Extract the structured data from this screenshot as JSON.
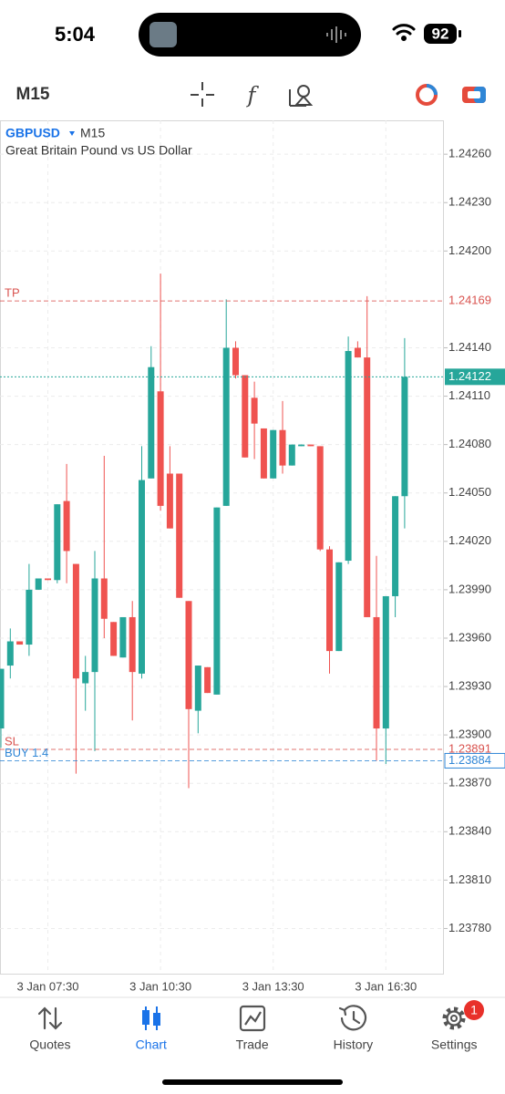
{
  "status_bar": {
    "time": "5:04",
    "battery": "92"
  },
  "toolbar": {
    "timeframe": "M15"
  },
  "chart_data": {
    "type": "candlestick",
    "symbol": "GBPUSD",
    "timeframe": "M15",
    "description": "Great Britain Pound vs US Dollar",
    "categories": [
      null,
      null,
      null,
      null,
      null,
      "3 Jan 07:30",
      null,
      null,
      null,
      null,
      null,
      null,
      null,
      null,
      null,
      null,
      null,
      "3 Jan 10:30",
      null,
      null,
      null,
      null,
      null,
      null,
      null,
      null,
      null,
      null,
      null,
      "3 Jan 13:30",
      null,
      null,
      null,
      null,
      null,
      null,
      null,
      null,
      null,
      null,
      null,
      "3 Jan 16:30",
      null,
      null
    ],
    "open": [
      1.23904,
      1.23943,
      1.23958,
      1.23956,
      1.2399,
      1.23997,
      1.23996,
      1.24045,
      1.24006,
      1.23932,
      1.23939,
      1.23997,
      1.2397,
      1.23948,
      1.23973,
      1.23938,
      1.24059,
      1.24113,
      1.24062,
      1.24062,
      1.23983,
      1.23915,
      1.23942,
      1.23925,
      1.24042,
      1.2414,
      1.24123,
      1.24109,
      1.2409,
      1.24059,
      1.24089,
      1.24067,
      1.24079,
      1.2408,
      1.24079,
      1.24015,
      1.23952,
      1.24008,
      1.2414,
      1.24134,
      1.23973,
      1.23904,
      1.23986,
      1.24048
    ],
    "high": [
      1.23941,
      1.23966,
      1.23958,
      1.24006,
      1.23997,
      1.23997,
      1.24043,
      1.24068,
      1.24006,
      1.23949,
      1.24014,
      1.24073,
      1.2397,
      1.23973,
      1.23983,
      1.24079,
      1.24141,
      1.24186,
      1.24079,
      1.24062,
      1.23983,
      1.23943,
      1.23942,
      1.24041,
      1.2417,
      1.24144,
      1.24123,
      1.24119,
      1.2409,
      1.24089,
      1.24107,
      1.2408,
      1.2408,
      1.2408,
      1.24079,
      1.24017,
      1.24007,
      1.24147,
      1.24144,
      1.24172,
      1.24011,
      1.23986,
      1.24048,
      1.24146
    ],
    "low": [
      1.23892,
      1.23935,
      1.23956,
      1.23949,
      1.2399,
      1.23996,
      1.23994,
      1.23994,
      1.23876,
      1.23915,
      1.2389,
      1.2396,
      1.23949,
      1.23948,
      1.23909,
      1.23935,
      1.24059,
      1.24039,
      1.24028,
      1.23985,
      1.23867,
      1.23901,
      1.23926,
      1.23925,
      1.24042,
      1.24121,
      1.24072,
      1.24071,
      1.24059,
      1.24059,
      1.24062,
      1.24067,
      1.24079,
      1.24079,
      1.24014,
      1.23938,
      1.23952,
      1.24006,
      1.24134,
      1.23973,
      1.23884,
      1.23882,
      1.23973,
      1.24028
    ],
    "close": [
      1.23941,
      1.23958,
      1.23956,
      1.2399,
      1.23997,
      1.23996,
      1.24043,
      1.24014,
      1.23935,
      1.23939,
      1.23997,
      1.23972,
      1.23949,
      1.23973,
      1.23939,
      1.24058,
      1.24128,
      1.24042,
      1.24028,
      1.23985,
      1.23916,
      1.23943,
      1.23926,
      1.24041,
      1.2414,
      1.24123,
      1.24072,
      1.24093,
      1.24059,
      1.24089,
      1.24067,
      1.2408,
      1.2408,
      1.24079,
      1.24015,
      1.23952,
      1.24007,
      1.24138,
      1.24134,
      1.23973,
      1.23904,
      1.23986,
      1.24048,
      1.24122
    ],
    "up_color": "#26a69a",
    "down_color": "#ef5350",
    "ylim": [
      1.23752,
      1.24281
    ],
    "yticks": [
      {
        "value": 1.2426,
        "label": "1.24260"
      },
      {
        "value": 1.2423,
        "label": "1.24230"
      },
      {
        "value": 1.242,
        "label": "1.24200"
      },
      {
        "value": 1.2414,
        "label": "1.24140"
      },
      {
        "value": 1.2411,
        "label": "1.24110"
      },
      {
        "value": 1.2408,
        "label": "1.24080"
      },
      {
        "value": 1.2405,
        "label": "1.24050"
      },
      {
        "value": 1.2402,
        "label": "1.24020"
      },
      {
        "value": 1.2399,
        "label": "1.23990"
      },
      {
        "value": 1.2396,
        "label": "1.23960"
      },
      {
        "value": 1.2393,
        "label": "1.23930"
      },
      {
        "value": 1.239,
        "label": "1.23900"
      },
      {
        "value": 1.2387,
        "label": "1.23870"
      },
      {
        "value": 1.2384,
        "label": "1.23840"
      },
      {
        "value": 1.2381,
        "label": "1.23810"
      },
      {
        "value": 1.2378,
        "label": "1.23780"
      }
    ],
    "grid": true,
    "levels": [
      {
        "name": "TP",
        "value": 1.24169,
        "color": "#d9534f"
      },
      {
        "name": "SL",
        "value": 1.23891,
        "color": "#d9534f"
      },
      {
        "name": "BUY 1.4",
        "value": 1.23884,
        "color": "#2f86d6"
      }
    ],
    "current_price": {
      "value": 1.24122,
      "color": "#26a69a"
    }
  },
  "tab_bar": {
    "tabs": [
      "Quotes",
      "Chart",
      "Trade",
      "History",
      "Settings"
    ],
    "active": 1,
    "badge": "1"
  }
}
